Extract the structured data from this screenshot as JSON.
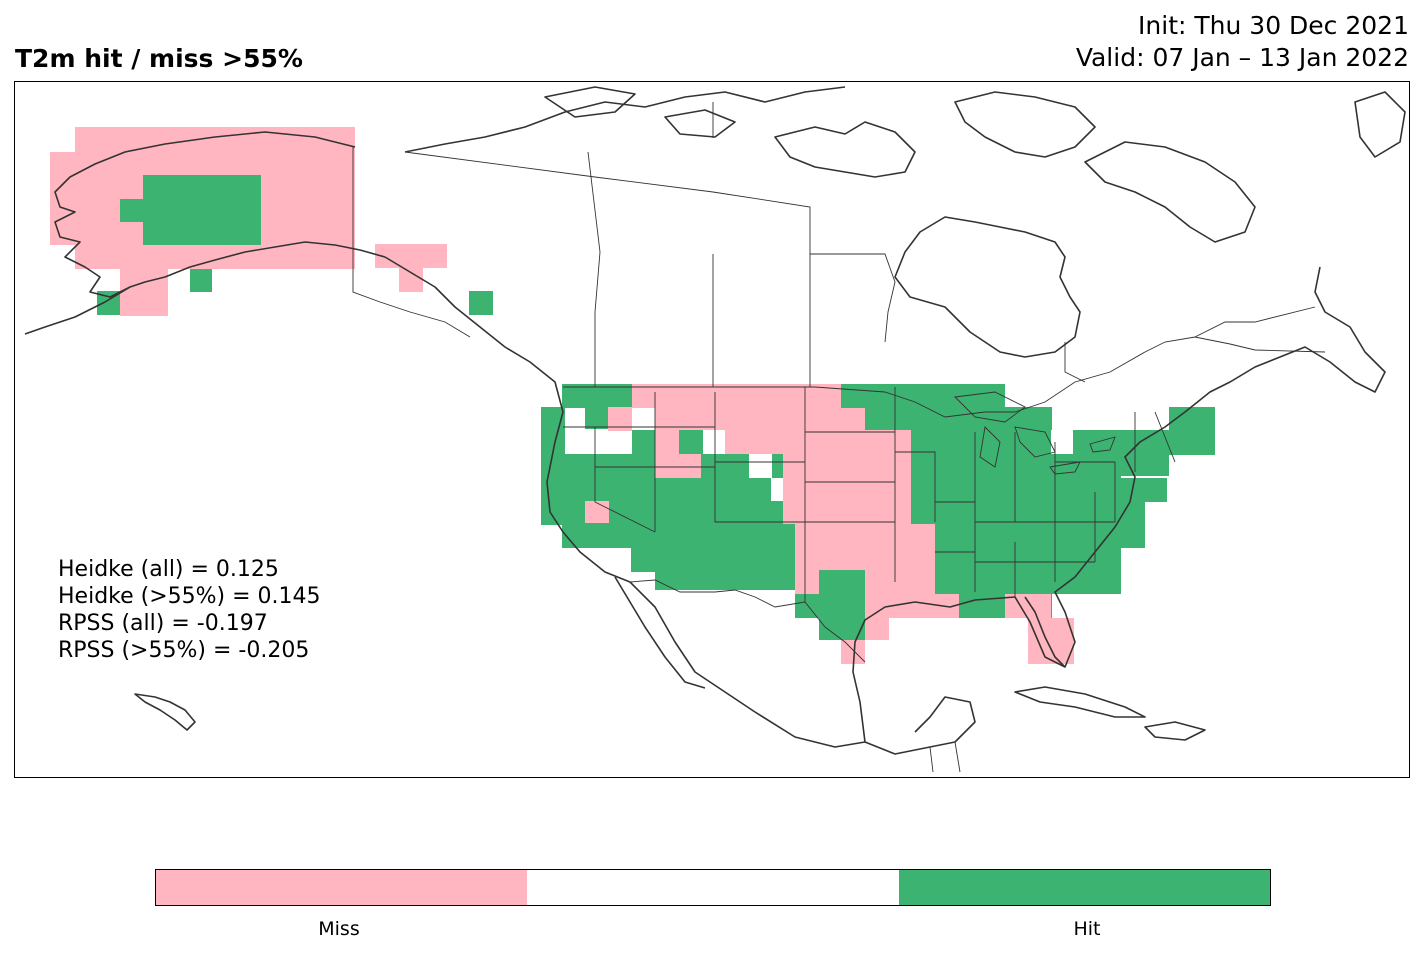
{
  "title": {
    "left": "T2m hit / miss  >55%",
    "init": "Init: Thu 30 Dec 2021",
    "valid": "Valid: 07 Jan – 13 Jan 2022"
  },
  "stats": [
    "Heidke (all) = 0.125",
    "Heidke (>55%) = 0.145",
    "RPSS (all) = -0.197",
    "RPSS (>55%) = -0.205"
  ],
  "legend": {
    "categories": [
      {
        "label": "Miss",
        "color": "#FFB6C1"
      },
      {
        "label": "",
        "color": "#FFFFFF"
      },
      {
        "label": "Hit",
        "color": "#3CB371"
      }
    ]
  },
  "map": {
    "region": "North America",
    "colors": {
      "miss": "#FFB6C1",
      "hit": "#3CB371",
      "coast": "#333333"
    }
  }
}
